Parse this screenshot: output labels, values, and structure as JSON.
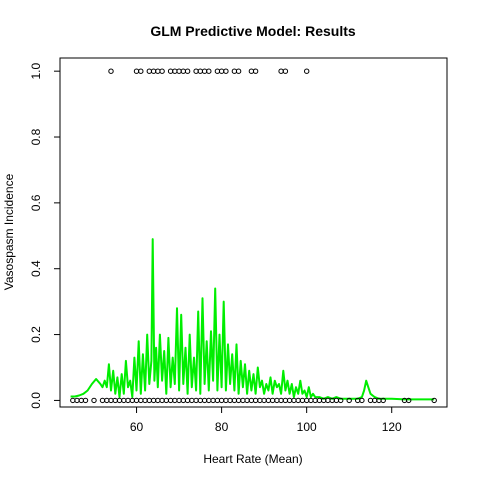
{
  "chart_data": {
    "type": "scatter",
    "title": "GLM Predictive Model: Results",
    "xlabel": "Heart Rate (Mean)",
    "ylabel": "Vasospasm Incidence",
    "xlim": [
      42,
      133
    ],
    "ylim": [
      -0.02,
      1.04
    ],
    "x_ticks": [
      60,
      80,
      100,
      120
    ],
    "y_ticks": [
      0.0,
      0.2,
      0.4,
      0.6,
      0.8,
      1.0
    ],
    "x_tick_labels": [
      "60",
      "80",
      "100",
      "120"
    ],
    "y_tick_labels": [
      "0.0",
      "0.2",
      "0.4",
      "0.6",
      "0.8",
      "1.0"
    ],
    "grid": false,
    "legend": "none",
    "colors": {
      "points": "#000000",
      "fit": "#00ee00"
    },
    "series": [
      {
        "kind": "points",
        "x": [
          54,
          60,
          61,
          63,
          64,
          65,
          66,
          68,
          69,
          70,
          71,
          72,
          74,
          75,
          76,
          77,
          79,
          80,
          81,
          83,
          84,
          87,
          88,
          94,
          95,
          100
        ],
        "y": [
          1,
          1,
          1,
          1,
          1,
          1,
          1,
          1,
          1,
          1,
          1,
          1,
          1,
          1,
          1,
          1,
          1,
          1,
          1,
          1,
          1,
          1,
          1,
          1,
          1,
          1
        ]
      },
      {
        "kind": "points",
        "x": [
          45,
          46,
          47,
          48,
          50,
          52,
          53,
          54,
          55,
          56,
          57,
          58,
          59,
          60,
          61,
          62,
          63,
          64,
          65,
          66,
          67,
          68,
          69,
          70,
          71,
          72,
          73,
          74,
          75,
          76,
          77,
          78,
          79,
          80,
          81,
          82,
          83,
          84,
          85,
          86,
          87,
          88,
          89,
          90,
          91,
          92,
          93,
          94,
          95,
          96,
          97,
          98,
          99,
          100,
          101,
          102,
          103,
          104,
          105,
          106,
          107,
          108,
          110,
          112,
          113,
          115,
          116,
          117,
          118,
          123,
          124,
          130
        ],
        "y": [
          0,
          0,
          0,
          0,
          0,
          0,
          0,
          0,
          0,
          0,
          0,
          0,
          0,
          0,
          0,
          0,
          0,
          0,
          0,
          0,
          0,
          0,
          0,
          0,
          0,
          0,
          0,
          0,
          0,
          0,
          0,
          0,
          0,
          0,
          0,
          0,
          0,
          0,
          0,
          0,
          0,
          0,
          0,
          0,
          0,
          0,
          0,
          0,
          0,
          0,
          0,
          0,
          0,
          0,
          0,
          0,
          0,
          0,
          0,
          0,
          0,
          0,
          0,
          0,
          0,
          0,
          0,
          0,
          0,
          0,
          0,
          0
        ]
      },
      {
        "kind": "line",
        "x": [
          44.5,
          45.5,
          46.5,
          47.5,
          48.5,
          49.5,
          50.5,
          51.5,
          52.0,
          52.5,
          53.0,
          53.5,
          54.0,
          54.5,
          55.0,
          55.5,
          56.0,
          56.5,
          57.0,
          57.5,
          58.0,
          58.5,
          59.0,
          59.5,
          60.0,
          60.5,
          61.0,
          61.5,
          62.0,
          62.5,
          63.0,
          63.5,
          63.8,
          64.2,
          64.6,
          65.0,
          65.5,
          66.0,
          66.5,
          67.0,
          67.5,
          68.0,
          68.5,
          69.0,
          69.5,
          70.0,
          70.5,
          71.0,
          71.5,
          72.0,
          72.5,
          73.0,
          73.5,
          74.0,
          74.5,
          75.0,
          75.5,
          76.0,
          76.5,
          77.0,
          77.5,
          78.0,
          78.5,
          79.0,
          79.5,
          80.0,
          80.5,
          81.0,
          81.5,
          82.0,
          82.5,
          83.0,
          83.5,
          84.0,
          84.5,
          85.0,
          85.5,
          86.0,
          86.5,
          87.0,
          87.5,
          88.0,
          88.5,
          89.0,
          89.5,
          90.0,
          90.5,
          91.0,
          91.5,
          92.0,
          92.5,
          93.0,
          93.5,
          94.0,
          94.5,
          95.0,
          95.5,
          96.0,
          96.5,
          97.0,
          97.5,
          98.0,
          98.5,
          99.0,
          99.5,
          100.0,
          100.5,
          101.0,
          101.5,
          102.0,
          103.0,
          104.0,
          105.0,
          106.0,
          107.0,
          108.0,
          109.0,
          110.0,
          111.0,
          112.0,
          113.0,
          113.5,
          114.0,
          114.5,
          115.0,
          116.0,
          117.0,
          118.0,
          120.0,
          123.0,
          126.0,
          128.0,
          130.0
        ],
        "y": [
          0.012,
          0.012,
          0.015,
          0.02,
          0.03,
          0.05,
          0.065,
          0.05,
          0.04,
          0.06,
          0.04,
          0.11,
          0.03,
          0.09,
          0.02,
          0.07,
          0.01,
          0.08,
          0.02,
          0.12,
          0.04,
          0.06,
          0.01,
          0.13,
          0.03,
          0.18,
          0.02,
          0.14,
          0.03,
          0.2,
          0.05,
          0.12,
          0.49,
          0.06,
          0.16,
          0.04,
          0.2,
          0.06,
          0.15,
          0.02,
          0.19,
          0.04,
          0.13,
          0.05,
          0.28,
          0.03,
          0.26,
          0.05,
          0.16,
          0.02,
          0.2,
          0.04,
          0.13,
          0.03,
          0.27,
          0.02,
          0.31,
          0.05,
          0.18,
          0.03,
          0.21,
          0.06,
          0.34,
          0.03,
          0.2,
          0.04,
          0.3,
          0.03,
          0.17,
          0.05,
          0.14,
          0.03,
          0.17,
          0.02,
          0.12,
          0.04,
          0.11,
          0.02,
          0.09,
          0.03,
          0.08,
          0.02,
          0.1,
          0.04,
          0.06,
          0.02,
          0.05,
          0.03,
          0.07,
          0.02,
          0.06,
          0.04,
          0.05,
          0.02,
          0.09,
          0.03,
          0.06,
          0.02,
          0.05,
          0.01,
          0.04,
          0.02,
          0.06,
          0.02,
          0.03,
          0.01,
          0.04,
          0.01,
          0.02,
          0.01,
          0.01,
          0.005,
          0.01,
          0.005,
          0.01,
          0.005,
          0.005,
          0.005,
          0.005,
          0.005,
          0.01,
          0.03,
          0.06,
          0.04,
          0.02,
          0.01,
          0.005,
          0.005,
          0.005,
          0.003,
          0.003,
          0.003,
          0.003
        ]
      }
    ]
  }
}
